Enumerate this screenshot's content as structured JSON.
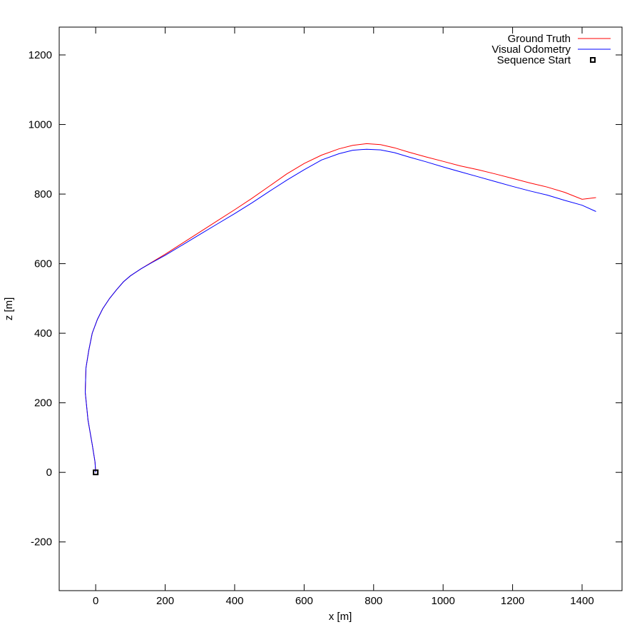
{
  "chart_data": {
    "type": "line",
    "xlabel": "x [m]",
    "ylabel": "z [m]",
    "xlim": [
      -105,
      1515
    ],
    "ylim": [
      -340,
      1280
    ],
    "xticks": [
      0,
      200,
      400,
      600,
      800,
      1000,
      1200,
      1400
    ],
    "xtick_labels": [
      "0",
      "200",
      "400",
      "600",
      "800",
      "1000",
      "1200",
      "1400"
    ],
    "yticks": [
      -200,
      0,
      200,
      400,
      600,
      800,
      1000,
      1200
    ],
    "ytick_labels": [
      "-200",
      "0",
      "200",
      "400",
      "600",
      "800",
      "1000",
      "1200"
    ],
    "grid": false,
    "legend_position": "top-right",
    "series": [
      {
        "name": "Ground Truth",
        "color": "#ff0000",
        "x": [
          0,
          -2,
          -10,
          -22,
          -30,
          -28,
          -20,
          -10,
          5,
          20,
          40,
          60,
          80,
          100,
          130,
          160,
          200,
          250,
          300,
          350,
          400,
          450,
          500,
          550,
          600,
          650,
          700,
          740,
          780,
          820,
          860,
          900,
          950,
          1000,
          1050,
          1100,
          1150,
          1200,
          1250,
          1300,
          1350,
          1400,
          1440
        ],
        "y": [
          0,
          30,
          80,
          150,
          230,
          300,
          350,
          400,
          440,
          470,
          500,
          525,
          548,
          565,
          585,
          603,
          627,
          659,
          691,
          723,
          755,
          788,
          823,
          858,
          888,
          912,
          930,
          940,
          945,
          942,
          933,
          921,
          907,
          894,
          881,
          870,
          858,
          845,
          832,
          820,
          805,
          785,
          790
        ]
      },
      {
        "name": "Visual Odometry",
        "color": "#0000ff",
        "x": [
          0,
          -2,
          -10,
          -22,
          -30,
          -28,
          -20,
          -10,
          5,
          20,
          40,
          60,
          80,
          100,
          130,
          160,
          200,
          250,
          300,
          350,
          400,
          450,
          500,
          550,
          600,
          650,
          700,
          740,
          780,
          820,
          860,
          900,
          950,
          1000,
          1050,
          1100,
          1150,
          1200,
          1250,
          1300,
          1350,
          1400,
          1440
        ],
        "y": [
          0,
          30,
          80,
          150,
          230,
          300,
          350,
          400,
          440,
          470,
          500,
          525,
          548,
          565,
          585,
          602,
          624,
          654,
          684,
          714,
          744,
          775,
          808,
          840,
          870,
          898,
          916,
          926,
          929,
          927,
          919,
          907,
          893,
          878,
          864,
          850,
          836,
          822,
          809,
          797,
          782,
          768,
          750
        ]
      }
    ],
    "markers": [
      {
        "name": "Sequence Start",
        "x": 0,
        "y": 0,
        "shape": "square",
        "color": "#000000"
      }
    ]
  }
}
